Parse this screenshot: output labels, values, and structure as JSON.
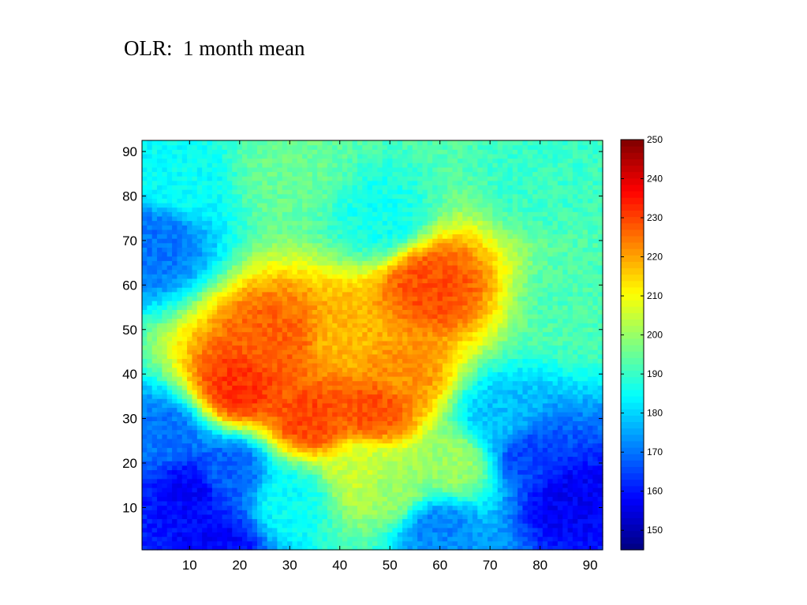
{
  "title": "OLR:  1 month mean",
  "chart_data": {
    "type": "heatmap",
    "title": "OLR:  1 month mean",
    "xlabel": "",
    "ylabel": "",
    "xlim": [
      0.5,
      92.5
    ],
    "ylim": [
      0.5,
      92.5
    ],
    "xticks": [
      10,
      20,
      30,
      40,
      50,
      60,
      70,
      80,
      90
    ],
    "yticks": [
      10,
      20,
      30,
      40,
      50,
      60,
      70,
      80,
      90
    ],
    "colorbar": {
      "colormap": "jet",
      "clim": [
        145,
        250
      ],
      "ticks": [
        150,
        160,
        170,
        180,
        190,
        200,
        210,
        220,
        230,
        240,
        250
      ]
    },
    "field_features": [
      {
        "x": 48,
        "y": 75,
        "value": 186
      },
      {
        "x": 80,
        "y": 85,
        "value": 190
      },
      {
        "x": 30,
        "y": 85,
        "value": 195
      },
      {
        "x": 3,
        "y": 70,
        "value": 170
      },
      {
        "x": 8,
        "y": 83,
        "value": 185
      },
      {
        "x": 50,
        "y": 15,
        "value": 200
      },
      {
        "x": 88,
        "y": 55,
        "value": 192
      },
      {
        "x": 20,
        "y": 37,
        "value": 232
      },
      {
        "x": 27,
        "y": 48,
        "value": 227
      },
      {
        "x": 34,
        "y": 30,
        "value": 230
      },
      {
        "x": 42,
        "y": 48,
        "value": 218
      },
      {
        "x": 47,
        "y": 32,
        "value": 229
      },
      {
        "x": 58,
        "y": 60,
        "value": 229
      },
      {
        "x": 52,
        "y": 40,
        "value": 222
      },
      {
        "x": 63,
        "y": 20,
        "value": 200
      },
      {
        "x": 78,
        "y": 22,
        "value": 165
      },
      {
        "x": 86,
        "y": 12,
        "value": 157
      },
      {
        "x": 72,
        "y": 30,
        "value": 178
      },
      {
        "x": 10,
        "y": 14,
        "value": 158
      },
      {
        "x": 18,
        "y": 18,
        "value": 168
      },
      {
        "x": 5,
        "y": 26,
        "value": 170
      },
      {
        "x": 30,
        "y": 12,
        "value": 185
      },
      {
        "x": 60,
        "y": 5,
        "value": 172
      },
      {
        "x": 15,
        "y": 2,
        "value": 158
      },
      {
        "x": 45,
        "y": 18,
        "value": 205
      }
    ]
  }
}
